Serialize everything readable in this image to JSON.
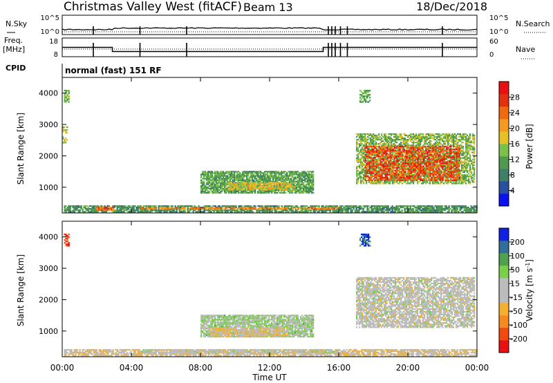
{
  "header": {
    "station": "Christmas Valley West (fitACF)",
    "beam": "Beam 13",
    "date": "18/Dec/2018"
  },
  "labels": {
    "nsky": "N.Sky",
    "nsearch": "N.Search",
    "freq1": "Freq.",
    "freq2": "[MHz]",
    "nave": "Nave",
    "cpid": "CPID",
    "cpid_value": "normal (fast) 151 RF",
    "slant_range": "Slant Range [km]",
    "time_axis": "Time UT",
    "power_cbar": "Power [dB]",
    "velocity_cbar": "Velocity [m s",
    "velocity_exp": "-1",
    "velocity_close": "]"
  },
  "colors": {
    "power_scale": [
      "#0a10f0",
      "#2a4fa0",
      "#3f7f66",
      "#4f9a4f",
      "#7ac04a",
      "#e6c025",
      "#f59a20",
      "#f06a10",
      "#e23010",
      "#e81010"
    ],
    "velocity_scale": [
      "#e81010",
      "#f04a10",
      "#f58a20",
      "#f5b030",
      "#bcbcbc",
      "#bcbcbc",
      "#7ad04a",
      "#4fa04f",
      "#2f6f9a",
      "#1020e0"
    ]
  },
  "chart_data": [
    {
      "type": "line",
      "name": "nsky-nsearch",
      "y_ticks": [
        "10^5",
        "10^0"
      ],
      "right_ticks": [
        "10^5",
        "10^0"
      ]
    },
    {
      "type": "line",
      "name": "frequency-nave",
      "left_ticks": [
        "18",
        "8"
      ],
      "right_ticks": [
        "60",
        "0"
      ],
      "frequency_segments": [
        {
          "start_h": 0.0,
          "end_h": 2.9,
          "value": 13
        },
        {
          "start_h": 2.9,
          "end_h": 15.1,
          "value": 10.8
        },
        {
          "start_h": 15.1,
          "end_h": 24.0,
          "value": 13
        }
      ],
      "gap_markers_h": [
        1.8,
        4.5,
        7.2,
        15.4,
        15.6,
        15.8,
        16.1,
        16.5,
        22.0
      ]
    },
    {
      "type": "heatmap",
      "name": "power",
      "x_ticks": [
        "00:00",
        "04:00",
        "08:00",
        "12:00",
        "16:00",
        "20:00",
        "00:00"
      ],
      "x_range_h": [
        0,
        24
      ],
      "y_ticks": [
        "4000",
        "3000",
        "2000",
        "1000"
      ],
      "y_range_km": [
        180,
        4500
      ],
      "colorbar_ticks": [
        "28",
        "24",
        "20",
        "16",
        "12",
        "8",
        "4"
      ],
      "colorbar_range": [
        0,
        32
      ],
      "regions": [
        {
          "t0": 0.1,
          "t1": 24.0,
          "r0": 200,
          "r1": 400,
          "val": 10,
          "density": 0.8
        },
        {
          "t0": 2.0,
          "t1": 3.0,
          "r0": 250,
          "r1": 380,
          "val": 24,
          "density": 0.7
        },
        {
          "t0": 4.5,
          "t1": 16.0,
          "r0": 280,
          "r1": 360,
          "val": 22,
          "density": 0.6
        },
        {
          "t0": 8.0,
          "t1": 14.5,
          "r0": 800,
          "r1": 1500,
          "val": 12,
          "density": 0.85
        },
        {
          "t0": 9.5,
          "t1": 13.5,
          "r0": 900,
          "r1": 1150,
          "val": 18,
          "density": 0.7
        },
        {
          "t0": 0.1,
          "t1": 0.4,
          "r0": 3700,
          "r1": 4100,
          "val": 14,
          "density": 0.6
        },
        {
          "t0": 0.0,
          "t1": 0.3,
          "r0": 2400,
          "r1": 2900,
          "val": 16,
          "density": 0.5
        },
        {
          "t0": 17.0,
          "t1": 23.8,
          "r0": 1100,
          "r1": 2700,
          "val": 14,
          "density": 0.7
        },
        {
          "t0": 17.5,
          "t1": 23.0,
          "r0": 1200,
          "r1": 2300,
          "val": 26,
          "density": 0.6
        },
        {
          "t0": 17.2,
          "t1": 17.8,
          "r0": 3700,
          "r1": 4100,
          "val": 12,
          "density": 0.6
        }
      ]
    },
    {
      "type": "heatmap",
      "name": "velocity",
      "x_ticks": [
        "00:00",
        "04:00",
        "08:00",
        "12:00",
        "16:00",
        "20:00",
        "00:00"
      ],
      "x_range_h": [
        0,
        24
      ],
      "y_ticks": [
        "4000",
        "3000",
        "2000",
        "1000"
      ],
      "y_range_km": [
        180,
        4500
      ],
      "colorbar_ticks": [
        "200",
        "100",
        "50",
        "15",
        "-15",
        "-50",
        "-100",
        "-200"
      ],
      "colorbar_range": [
        -250,
        250
      ],
      "regions": [
        {
          "t0": 0.1,
          "t1": 24.0,
          "r0": 200,
          "r1": 400,
          "val": -30,
          "density": 0.8
        },
        {
          "t0": 4.5,
          "t1": 16.0,
          "r0": 280,
          "r1": 380,
          "val": 0,
          "density": 0.6
        },
        {
          "t0": 8.0,
          "t1": 14.5,
          "r0": 800,
          "r1": 1500,
          "val": 40,
          "density": 0.85
        },
        {
          "t0": 8.5,
          "t1": 13.0,
          "r0": 800,
          "r1": 1100,
          "val": -40,
          "density": 0.7
        },
        {
          "t0": 0.1,
          "t1": 0.4,
          "r0": 3700,
          "r1": 4100,
          "val": -200,
          "density": 0.6
        },
        {
          "t0": 17.0,
          "t1": 23.8,
          "r0": 1100,
          "r1": 2700,
          "val": 0,
          "density": 0.75
        },
        {
          "t0": 17.2,
          "t1": 17.8,
          "r0": 3700,
          "r1": 4100,
          "val": 200,
          "density": 0.6
        }
      ]
    }
  ]
}
